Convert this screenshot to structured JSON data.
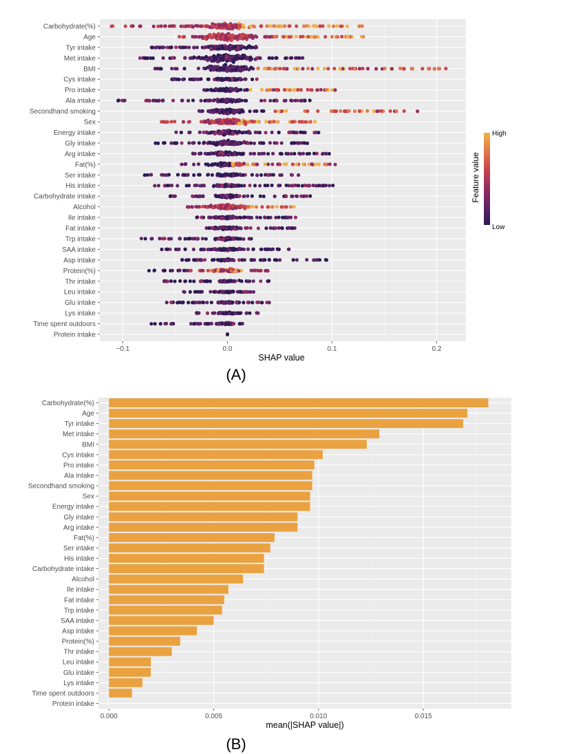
{
  "chart_data": [
    {
      "type": "scatter",
      "subtype": "shap-beeswarm",
      "panel_label": "(A)",
      "xlabel": "SHAP value",
      "ylabel": "",
      "xlim": [
        -0.122,
        0.228
      ],
      "xticks": [
        -0.1,
        0.0,
        0.1,
        0.2
      ],
      "xtick_labels": [
        "−0.1",
        "0.0",
        "0.1",
        "0.2"
      ],
      "grid": true,
      "legend": {
        "title": "Feature value",
        "high_label": "High",
        "low_label": "Low",
        "placement": "right",
        "colors": [
          "#2c1a54",
          "#5e2467",
          "#952c62",
          "#c8444c",
          "#e2794a",
          "#f0b245"
        ]
      },
      "features": [
        {
          "name": "Carbohydrate(%)",
          "min": -0.113,
          "max": 0.133,
          "width": 6,
          "hue": "high"
        },
        {
          "name": "Age",
          "min": -0.051,
          "max": 0.14,
          "width": 7,
          "hue": "high"
        },
        {
          "name": "Tyr intake",
          "min": -0.075,
          "max": 0.03,
          "width": 5,
          "hue": "low"
        },
        {
          "name": "Met intake",
          "min": -0.085,
          "max": 0.072,
          "width": 7,
          "hue": "low"
        },
        {
          "name": "BMI",
          "min": -0.07,
          "max": 0.21,
          "width": 6,
          "hue": "mixed"
        },
        {
          "name": "Cys intake",
          "min": -0.055,
          "max": 0.03,
          "width": 2,
          "hue": "low"
        },
        {
          "name": "Pro intake",
          "min": -0.025,
          "max": 0.105,
          "width": 3,
          "hue": "mixed"
        },
        {
          "name": "Ala intake",
          "min": -0.105,
          "max": 0.08,
          "width": 3,
          "hue": "low"
        },
        {
          "name": "Secondhand smoking",
          "min": -0.03,
          "max": 0.183,
          "width": 4,
          "hue": "mixed"
        },
        {
          "name": "Sex",
          "min": -0.065,
          "max": 0.085,
          "width": 5,
          "hue": "high"
        },
        {
          "name": "Energy intake",
          "min": -0.05,
          "max": 0.09,
          "width": 4,
          "hue": "low"
        },
        {
          "name": "Gly intake",
          "min": -0.07,
          "max": 0.08,
          "width": 4,
          "hue": "low"
        },
        {
          "name": "Arg intake",
          "min": -0.035,
          "max": 0.1,
          "width": 3,
          "hue": "low"
        },
        {
          "name": "Fat(%)",
          "min": -0.05,
          "max": 0.103,
          "width": 3,
          "hue": "mixed"
        },
        {
          "name": "Ser intake",
          "min": -0.08,
          "max": 0.07,
          "width": 2,
          "hue": "low"
        },
        {
          "name": "His intake",
          "min": -0.07,
          "max": 0.103,
          "width": 2,
          "hue": "low"
        },
        {
          "name": "Carbohydrate intake",
          "min": -0.055,
          "max": 0.08,
          "width": 2,
          "hue": "low"
        },
        {
          "name": "Alcohol",
          "min": -0.04,
          "max": 0.068,
          "width": 4,
          "hue": "high"
        },
        {
          "name": "Ile intake",
          "min": -0.03,
          "max": 0.07,
          "width": 2,
          "hue": "low"
        },
        {
          "name": "Fat intake",
          "min": -0.02,
          "max": 0.065,
          "width": 2,
          "hue": "low"
        },
        {
          "name": "Trp intake",
          "min": -0.083,
          "max": 0.025,
          "width": 2,
          "hue": "low"
        },
        {
          "name": "SAA intake",
          "min": -0.065,
          "max": 0.06,
          "width": 2,
          "hue": "low"
        },
        {
          "name": "Asp intake",
          "min": -0.045,
          "max": 0.1,
          "width": 1,
          "hue": "low"
        },
        {
          "name": "Protein(%)",
          "min": -0.078,
          "max": 0.04,
          "width": 2,
          "hue": "mixed"
        },
        {
          "name": "Thr intake",
          "min": -0.063,
          "max": 0.042,
          "width": 1,
          "hue": "low"
        },
        {
          "name": "Leu intake",
          "min": -0.045,
          "max": 0.025,
          "width": 1,
          "hue": "low"
        },
        {
          "name": "Glu intake",
          "min": -0.058,
          "max": 0.04,
          "width": 1,
          "hue": "low"
        },
        {
          "name": "Lys intake",
          "min": -0.03,
          "max": 0.03,
          "width": 1,
          "hue": "low"
        },
        {
          "name": "Time spent outdoors",
          "min": -0.073,
          "max": 0.018,
          "width": 1,
          "hue": "low"
        },
        {
          "name": "Protein intake",
          "min": 0.0,
          "max": 0.0,
          "width": 1,
          "hue": "low"
        }
      ]
    },
    {
      "type": "bar",
      "orientation": "horizontal",
      "panel_label": "(B)",
      "xlabel": "mean(|SHAP value|)",
      "ylabel": "",
      "xlim": [
        -0.0005,
        0.0192
      ],
      "xticks": [
        0.0,
        0.005,
        0.01,
        0.015
      ],
      "xtick_labels": [
        "0.000",
        "0.005",
        "0.010",
        "0.015"
      ],
      "grid": true,
      "bar_color": "#eaa240",
      "categories": [
        "Carbohydrate(%)",
        "Age",
        "Tyr intake",
        "Met intake",
        "BMI",
        "Cys intake",
        "Pro intake",
        "Ala intake",
        "Secondhand smoking",
        "Sex",
        "Energy intake",
        "Gly intake",
        "Arg intake",
        "Fat(%)",
        "Ser intake",
        "His intake",
        "Carbohydrate intake",
        "Alcohol",
        "Ile intake",
        "Fat intake",
        "Trp intake",
        "SAA intake",
        "Asp intake",
        "Protein(%)",
        "Thr intake",
        "Leu intake",
        "Glu intake",
        "Lys intake",
        "Time spent outdoors",
        "Protein intake"
      ],
      "values": [
        0.0181,
        0.0171,
        0.0169,
        0.0129,
        0.0123,
        0.0102,
        0.0098,
        0.0097,
        0.0097,
        0.0096,
        0.0096,
        0.009,
        0.009,
        0.0079,
        0.0077,
        0.0074,
        0.0074,
        0.0064,
        0.0057,
        0.0055,
        0.0054,
        0.005,
        0.0042,
        0.0034,
        0.003,
        0.002,
        0.002,
        0.0016,
        0.0011,
        0.0
      ]
    }
  ]
}
